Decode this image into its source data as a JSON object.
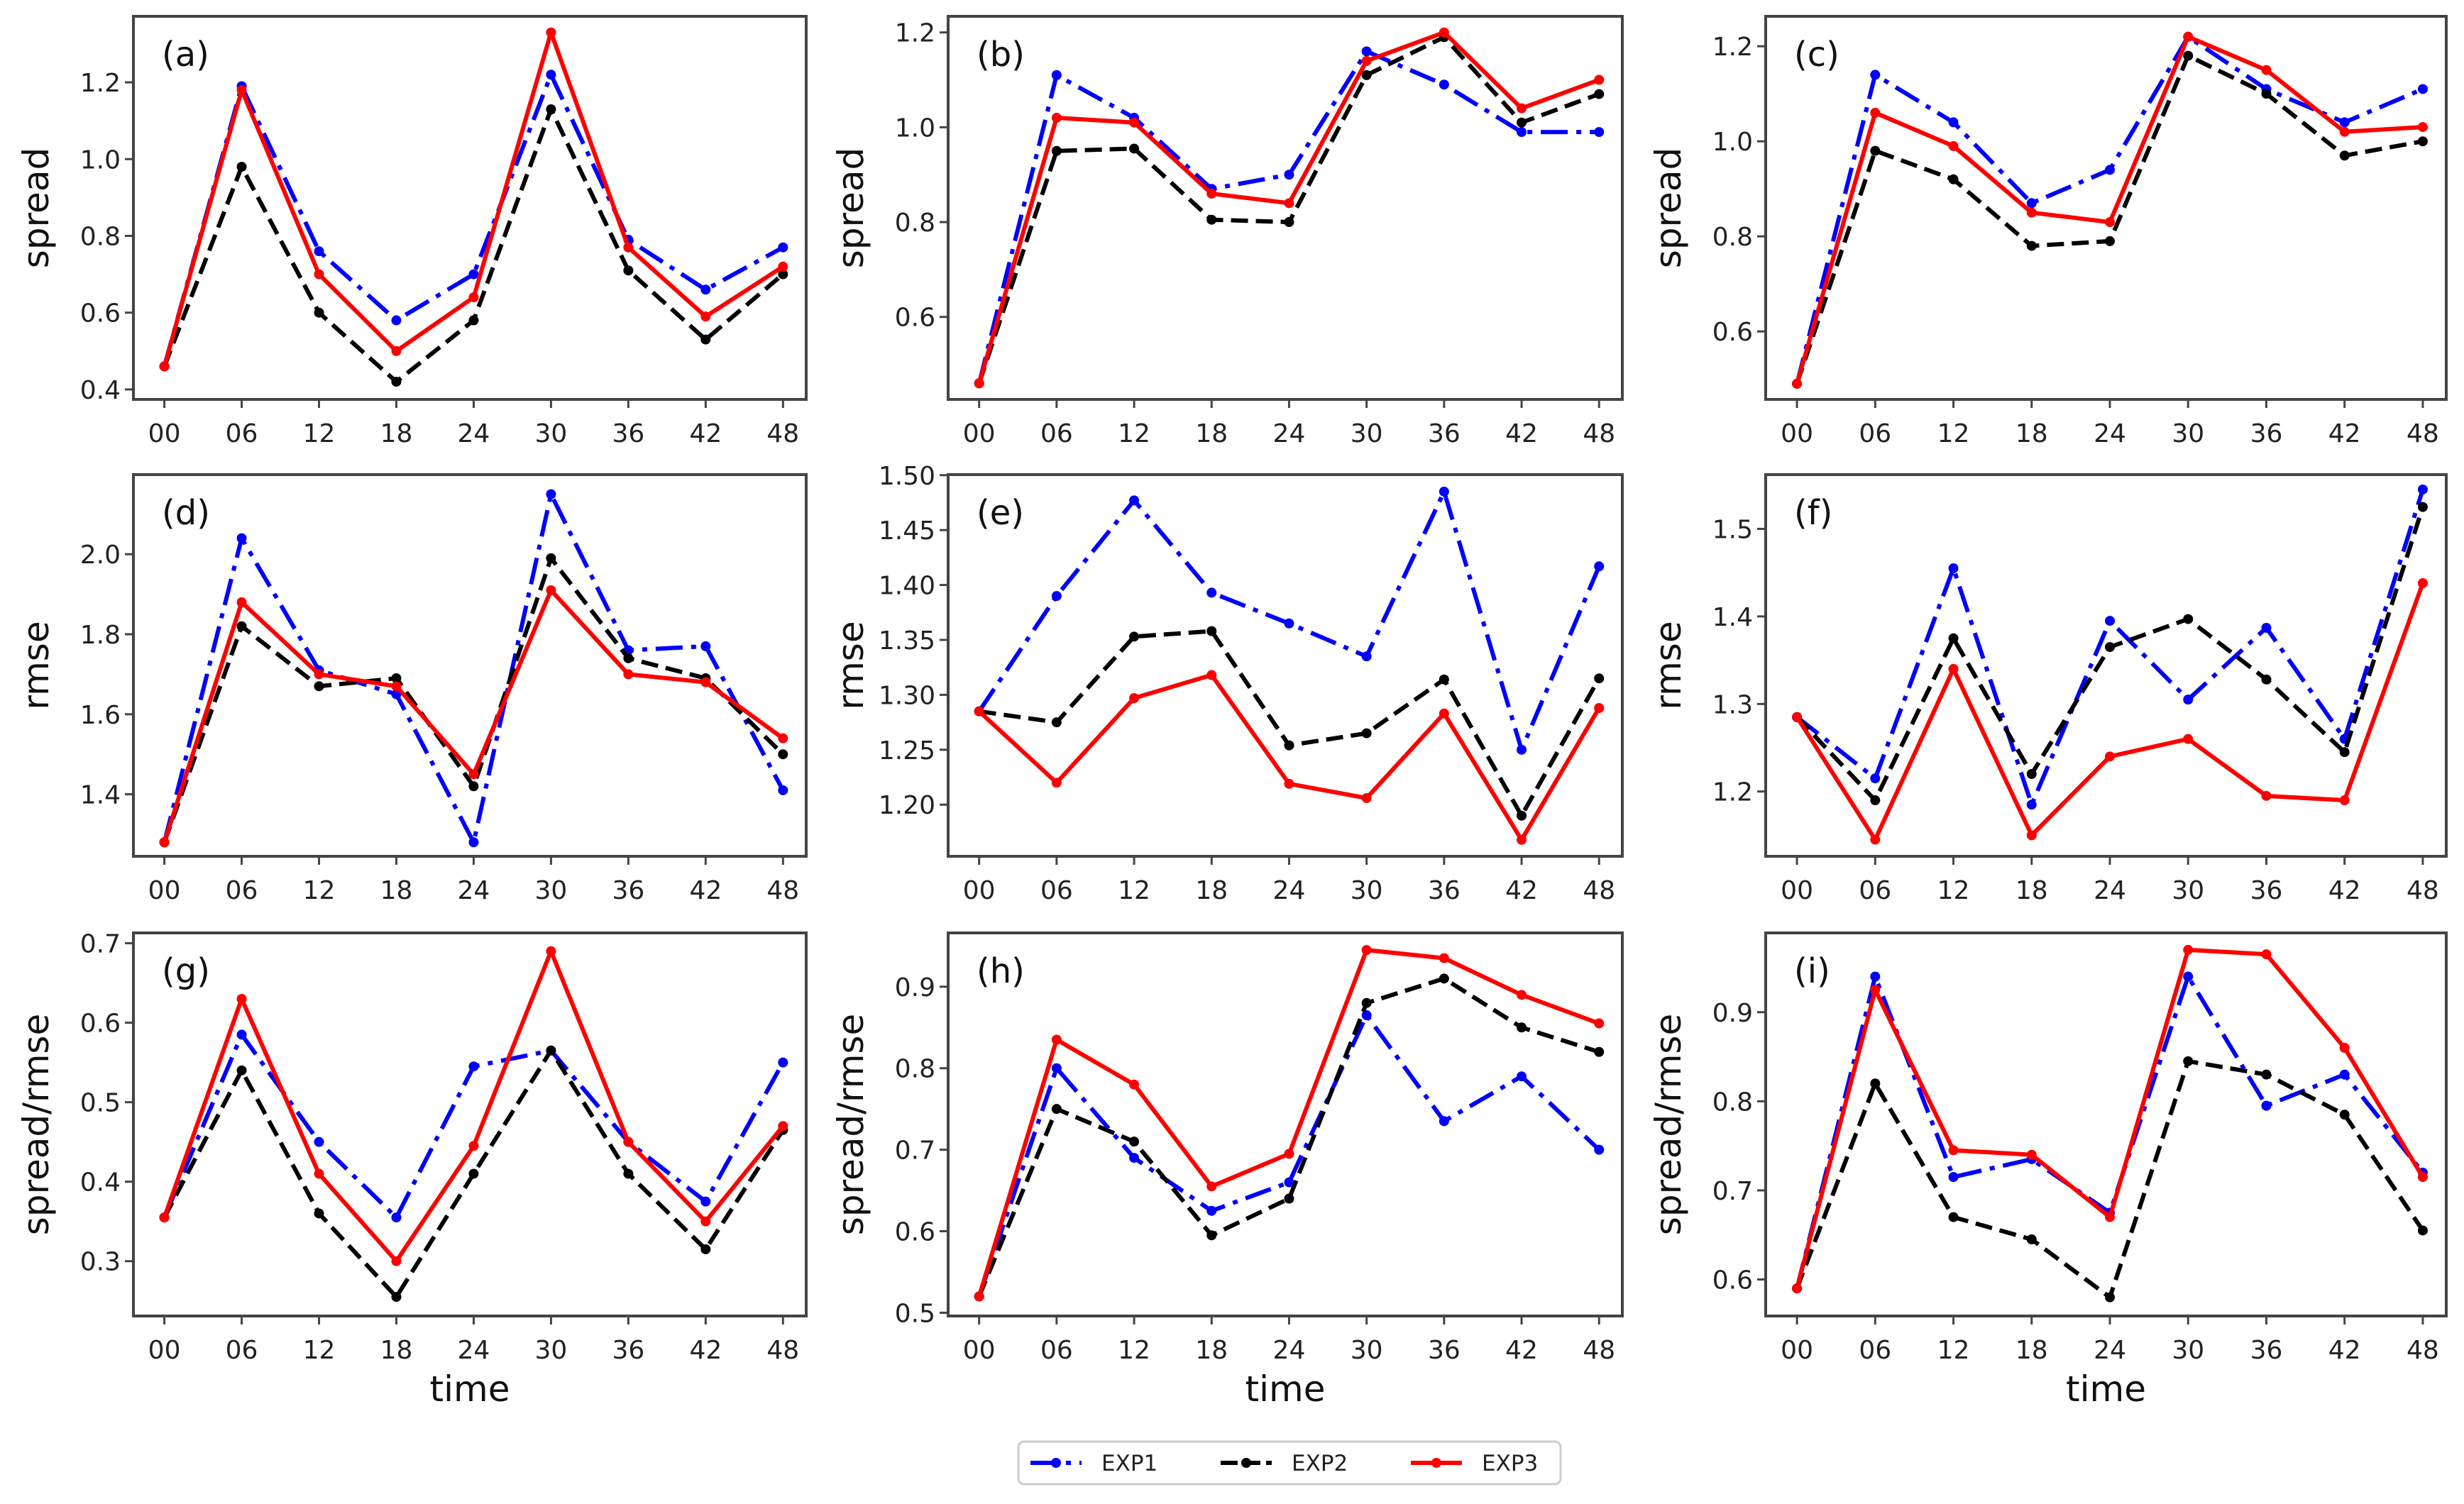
{
  "chart_data": {
    "type": "line",
    "x": [
      "00",
      "06",
      "12",
      "18",
      "24",
      "30",
      "36",
      "42",
      "48"
    ],
    "xlabel": "time",
    "legend": {
      "placement": "bottom-center",
      "entries": [
        {
          "name": "EXP1",
          "color": "#0000ff",
          "style": "dashdot"
        },
        {
          "name": "EXP2",
          "color": "#000000",
          "style": "dashed"
        },
        {
          "name": "EXP3",
          "color": "#ff0000",
          "style": "solid"
        }
      ]
    },
    "panels": [
      {
        "label": "(a)",
        "ylabel": "spread",
        "ylim": [
          0.374,
          1.372
        ],
        "yticks": [
          "0.4",
          "0.6",
          "0.8",
          "1.0",
          "1.2"
        ],
        "series": [
          {
            "name": "EXP1",
            "values": [
              0.46,
              1.19,
              0.76,
              0.58,
              0.7,
              1.22,
              0.79,
              0.66,
              0.77
            ]
          },
          {
            "name": "EXP2",
            "values": [
              0.46,
              0.98,
              0.6,
              0.42,
              0.58,
              1.13,
              0.71,
              0.53,
              0.7
            ]
          },
          {
            "name": "EXP3",
            "values": [
              0.46,
              1.18,
              0.7,
              0.5,
              0.64,
              1.33,
              0.77,
              0.59,
              0.72
            ]
          }
        ]
      },
      {
        "label": "(b)",
        "ylabel": "spread",
        "ylim": [
          0.426,
          1.234
        ],
        "yticks": [
          "0.6",
          "0.8",
          "1.0",
          "1.2"
        ],
        "series": [
          {
            "name": "EXP1",
            "values": [
              0.46,
              1.11,
              1.02,
              0.87,
              0.9,
              1.16,
              1.09,
              0.99,
              0.99
            ]
          },
          {
            "name": "EXP2",
            "values": [
              0.46,
              0.95,
              0.955,
              0.805,
              0.8,
              1.11,
              1.19,
              1.01,
              1.07
            ]
          },
          {
            "name": "EXP3",
            "values": [
              0.46,
              1.02,
              1.01,
              0.86,
              0.84,
              1.14,
              1.2,
              1.04,
              1.1
            ]
          }
        ]
      },
      {
        "label": "(c)",
        "ylabel": "spread",
        "ylim": [
          0.457,
          1.263
        ],
        "yticks": [
          "0.6",
          "0.8",
          "1.0",
          "1.2"
        ],
        "series": [
          {
            "name": "EXP1",
            "values": [
              0.49,
              1.14,
              1.04,
              0.87,
              0.94,
              1.22,
              1.11,
              1.04,
              1.11
            ]
          },
          {
            "name": "EXP2",
            "values": [
              0.49,
              0.98,
              0.92,
              0.78,
              0.79,
              1.18,
              1.1,
              0.97,
              1.0
            ]
          },
          {
            "name": "EXP3",
            "values": [
              0.49,
              1.06,
              0.99,
              0.85,
              0.83,
              1.22,
              1.15,
              1.02,
              1.03
            ]
          }
        ]
      },
      {
        "label": "(d)",
        "ylabel": "rmse",
        "ylim": [
          1.245,
          2.199
        ],
        "yticks": [
          "1.4",
          "1.6",
          "1.8",
          "2.0"
        ],
        "series": [
          {
            "name": "EXP1",
            "values": [
              1.28,
              2.04,
              1.71,
              1.65,
              1.28,
              2.15,
              1.76,
              1.77,
              1.41
            ]
          },
          {
            "name": "EXP2",
            "values": [
              1.28,
              1.82,
              1.67,
              1.69,
              1.42,
              1.99,
              1.74,
              1.69,
              1.5
            ]
          },
          {
            "name": "EXP3",
            "values": [
              1.28,
              1.88,
              1.7,
              1.67,
              1.45,
              1.91,
              1.7,
              1.68,
              1.54
            ]
          }
        ]
      },
      {
        "label": "(e)",
        "ylabel": "rmse",
        "ylim": [
          1.153,
          1.5005
        ],
        "yticks": [
          "1.20",
          "1.25",
          "1.30",
          "1.35",
          "1.40",
          "1.45",
          "1.50"
        ],
        "series": [
          {
            "name": "EXP1",
            "values": [
              1.285,
              1.39,
              1.477,
              1.393,
              1.365,
              1.335,
              1.485,
              1.25,
              1.417
            ]
          },
          {
            "name": "EXP2",
            "values": [
              1.285,
              1.275,
              1.353,
              1.358,
              1.254,
              1.265,
              1.314,
              1.19,
              1.315
            ]
          },
          {
            "name": "EXP3",
            "values": [
              1.285,
              1.22,
              1.297,
              1.318,
              1.219,
              1.206,
              1.283,
              1.168,
              1.288
            ]
          }
        ]
      },
      {
        "label": "(f)",
        "ylabel": "rmse",
        "ylim": [
          1.126,
          1.562
        ],
        "yticks": [
          "1.2",
          "1.3",
          "1.4",
          "1.5"
        ],
        "series": [
          {
            "name": "EXP1",
            "values": [
              1.285,
              1.215,
              1.455,
              1.185,
              1.395,
              1.305,
              1.387,
              1.26,
              1.545
            ]
          },
          {
            "name": "EXP2",
            "values": [
              1.285,
              1.19,
              1.375,
              1.22,
              1.365,
              1.397,
              1.328,
              1.245,
              1.525
            ]
          },
          {
            "name": "EXP3",
            "values": [
              1.285,
              1.145,
              1.34,
              1.15,
              1.24,
              1.26,
              1.195,
              1.19,
              1.438
            ]
          }
        ]
      },
      {
        "label": "(g)",
        "ylabel": "spread/rmse",
        "ylim": [
          0.231,
          0.713
        ],
        "yticks": [
          "0.3",
          "0.4",
          "0.5",
          "0.6",
          "0.7"
        ],
        "series": [
          {
            "name": "EXP1",
            "values": [
              0.355,
              0.585,
              0.45,
              0.355,
              0.545,
              0.565,
              0.45,
              0.375,
              0.55
            ]
          },
          {
            "name": "EXP2",
            "values": [
              0.355,
              0.54,
              0.36,
              0.255,
              0.41,
              0.565,
              0.41,
              0.315,
              0.465
            ]
          },
          {
            "name": "EXP3",
            "values": [
              0.355,
              0.63,
              0.41,
              0.3,
              0.445,
              0.69,
              0.45,
              0.35,
              0.47
            ]
          }
        ]
      },
      {
        "label": "(h)",
        "ylabel": "spread/rmse",
        "ylim": [
          0.496,
          0.966
        ],
        "yticks": [
          "0.5",
          "0.6",
          "0.7",
          "0.8",
          "0.9"
        ],
        "series": [
          {
            "name": "EXP1",
            "values": [
              0.52,
              0.8,
              0.69,
              0.625,
              0.66,
              0.865,
              0.735,
              0.79,
              0.7
            ]
          },
          {
            "name": "EXP2",
            "values": [
              0.52,
              0.75,
              0.71,
              0.595,
              0.64,
              0.88,
              0.91,
              0.85,
              0.82
            ]
          },
          {
            "name": "EXP3",
            "values": [
              0.52,
              0.835,
              0.78,
              0.655,
              0.695,
              0.945,
              0.935,
              0.89,
              0.855
            ]
          }
        ]
      },
      {
        "label": "(i)",
        "ylabel": "spread/rmse",
        "ylim": [
          0.559,
          0.989
        ],
        "yticks": [
          "0.6",
          "0.7",
          "0.8",
          "0.9"
        ],
        "series": [
          {
            "name": "EXP1",
            "values": [
              0.59,
              0.94,
              0.715,
              0.735,
              0.675,
              0.94,
              0.795,
              0.83,
              0.72
            ]
          },
          {
            "name": "EXP2",
            "values": [
              0.59,
              0.82,
              0.67,
              0.645,
              0.58,
              0.845,
              0.83,
              0.785,
              0.655
            ]
          },
          {
            "name": "EXP3",
            "values": [
              0.59,
              0.925,
              0.745,
              0.74,
              0.67,
              0.97,
              0.965,
              0.86,
              0.715
            ]
          }
        ]
      }
    ]
  }
}
